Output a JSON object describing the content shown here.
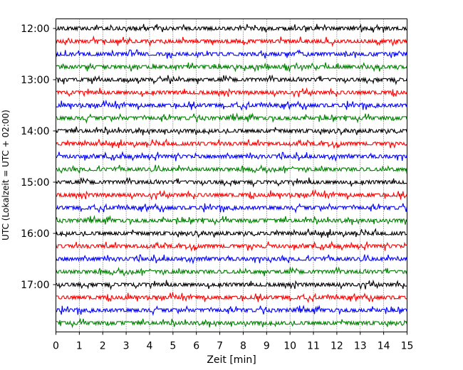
{
  "chart_data": {
    "type": "line",
    "title": "",
    "xlabel": "Zeit  [min]",
    "ylabel": "UTC (Lokalzeit = UTC + 02:00)",
    "xlim": [
      0,
      15
    ],
    "x_ticks": [
      "0",
      "1",
      "2",
      "3",
      "4",
      "5",
      "6",
      "7",
      "8",
      "9",
      "10",
      "11",
      "12",
      "13",
      "14",
      "15"
    ],
    "y_ticks": [
      "12:00",
      "13:00",
      "14:00",
      "15:00",
      "16:00",
      "17:00"
    ],
    "grid_x": true,
    "trace_interval_min": 15,
    "trace_start": "12:00",
    "trace_end": "17:45",
    "trace_colors": [
      "#000000",
      "#ff0000",
      "#0000ff",
      "#008000"
    ],
    "series": [
      {
        "start": "12:00",
        "color": "#000000"
      },
      {
        "start": "12:15",
        "color": "#ff0000"
      },
      {
        "start": "12:30",
        "color": "#0000ff"
      },
      {
        "start": "12:45",
        "color": "#008000"
      },
      {
        "start": "13:00",
        "color": "#000000"
      },
      {
        "start": "13:15",
        "color": "#ff0000"
      },
      {
        "start": "13:30",
        "color": "#0000ff"
      },
      {
        "start": "13:45",
        "color": "#008000"
      },
      {
        "start": "14:00",
        "color": "#000000"
      },
      {
        "start": "14:15",
        "color": "#ff0000"
      },
      {
        "start": "14:30",
        "color": "#0000ff"
      },
      {
        "start": "14:45",
        "color": "#008000"
      },
      {
        "start": "15:00",
        "color": "#000000"
      },
      {
        "start": "15:15",
        "color": "#ff0000"
      },
      {
        "start": "15:30",
        "color": "#0000ff"
      },
      {
        "start": "15:45",
        "color": "#008000"
      },
      {
        "start": "16:00",
        "color": "#000000"
      },
      {
        "start": "16:15",
        "color": "#ff0000"
      },
      {
        "start": "16:30",
        "color": "#0000ff"
      },
      {
        "start": "16:45",
        "color": "#008000"
      },
      {
        "start": "17:00",
        "color": "#000000"
      },
      {
        "start": "17:15",
        "color": "#ff0000"
      },
      {
        "start": "17:30",
        "color": "#0000ff"
      },
      {
        "start": "17:45",
        "color": "#008000"
      }
    ]
  }
}
